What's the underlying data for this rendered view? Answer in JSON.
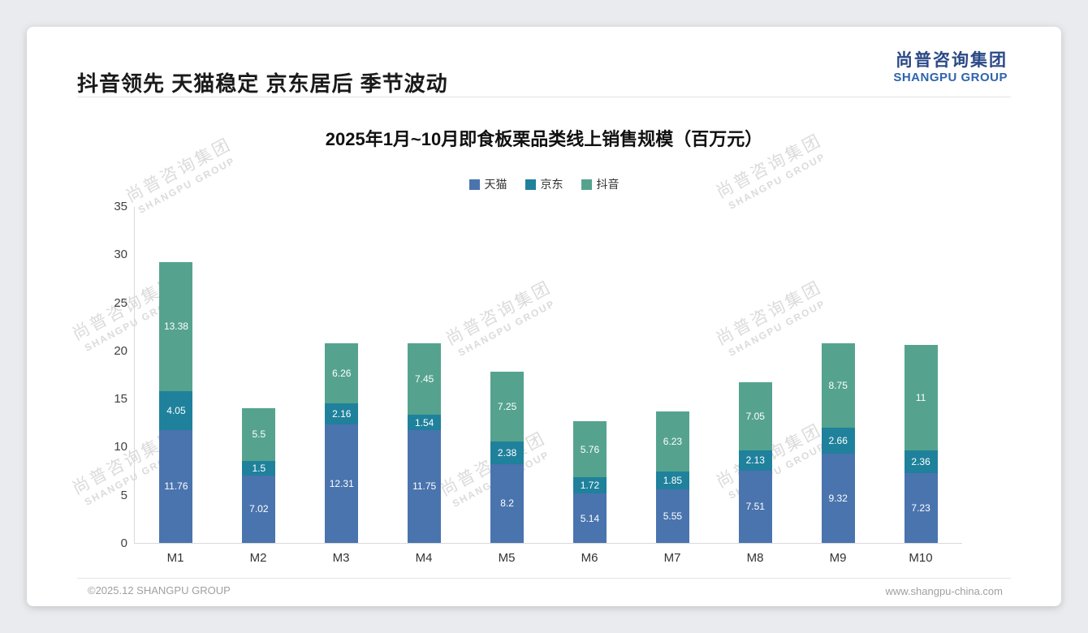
{
  "page": {
    "header_title": "抖音领先 天猫稳定 京东居后 季节波动",
    "logo": {
      "cn": "尚普咨询集团",
      "en": "SHANGPU GROUP"
    },
    "footer": {
      "left": "©2025.12 SHANGPU GROUP",
      "right": "www.shangpu-china.com"
    },
    "watermark": {
      "line1": "尚普咨询集团",
      "line2": "SHANGPU GROUP"
    }
  },
  "chart_data": {
    "type": "bar",
    "stacked": true,
    "title": "2025年1月~10月即食板栗品类线上销售规模（百万元）",
    "categories": [
      "M1",
      "M2",
      "M3",
      "M4",
      "M5",
      "M6",
      "M7",
      "M8",
      "M9",
      "M10"
    ],
    "series": [
      {
        "name": "天猫",
        "color": "#4a74ae",
        "values": [
          11.76,
          7.02,
          12.31,
          11.75,
          8.2,
          5.14,
          5.55,
          7.51,
          9.32,
          7.23
        ]
      },
      {
        "name": "京东",
        "color": "#1f819b",
        "values": [
          4.05,
          1.5,
          2.16,
          1.54,
          2.38,
          1.72,
          1.85,
          2.13,
          2.66,
          2.36
        ]
      },
      {
        "name": "抖音",
        "color": "#55a38e",
        "values": [
          13.38,
          5.5,
          6.26,
          7.45,
          7.25,
          5.76,
          6.23,
          7.05,
          8.75,
          11
        ]
      }
    ],
    "ylabel": "",
    "xlabel": "",
    "ylim": [
      0,
      35
    ],
    "yticks": [
      0,
      5,
      10,
      15,
      20,
      25,
      30,
      35
    ],
    "legend_position": "top",
    "grid": false
  }
}
